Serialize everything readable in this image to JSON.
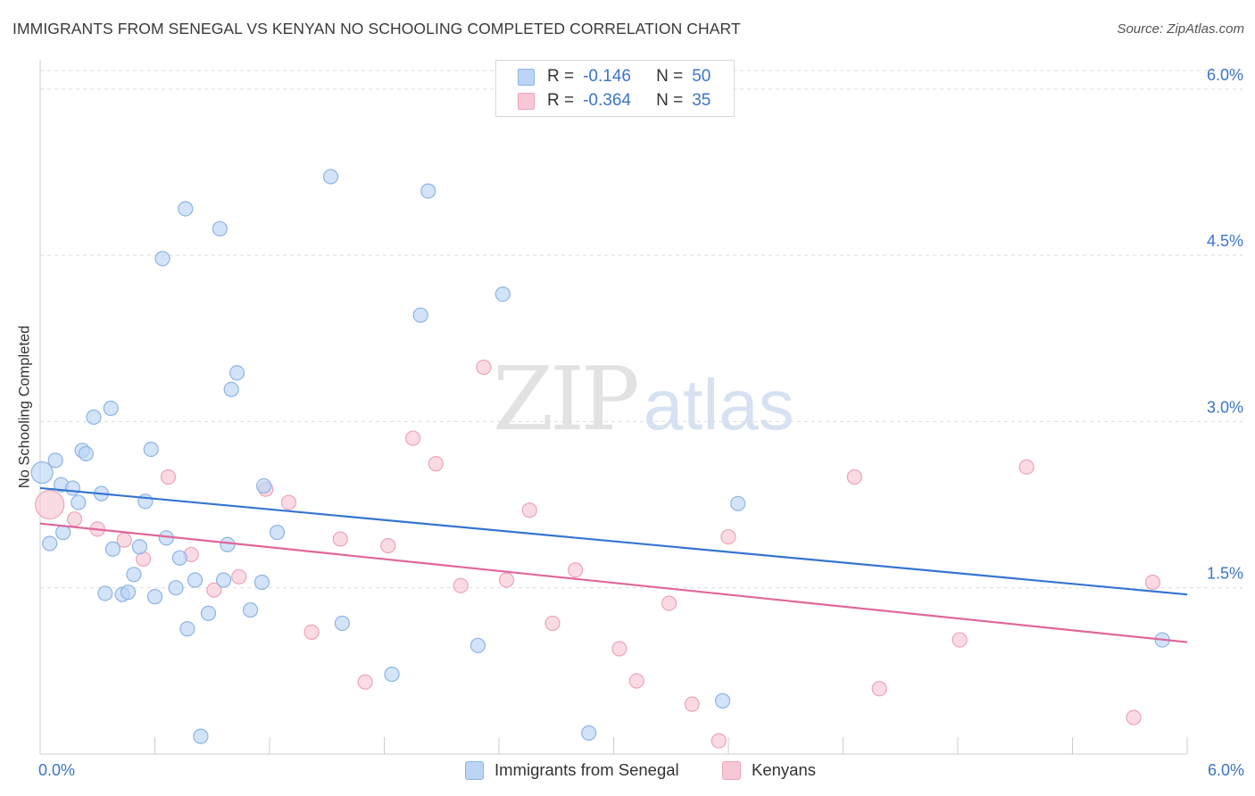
{
  "header": {
    "title": "IMMIGRANTS FROM SENEGAL VS KENYAN NO SCHOOLING COMPLETED CORRELATION CHART",
    "source": "Source: ZipAtlas.com"
  },
  "watermark": {
    "zip": "ZIP",
    "atlas": "atlas"
  },
  "legend_top": [
    {
      "r_label": "R =",
      "r_value": "-0.146",
      "n_label": "N =",
      "n_value": "50"
    },
    {
      "r_label": "R =",
      "r_value": "-0.364",
      "n_label": "N =",
      "n_value": "35"
    }
  ],
  "legend_bottom": [
    {
      "label": "Immigrants from Senegal"
    },
    {
      "label": "Kenyans"
    }
  ],
  "colors": {
    "series_a_fill": "#bcd4f5",
    "series_a_stroke": "#8db4e6",
    "series_a_line": "#3575d0",
    "series_b_fill": "#f8c7d5",
    "series_b_stroke": "#eea3b8",
    "series_b_line": "#e0669a",
    "tick_label": "#3b74c9",
    "grid": "#dcdcdc"
  },
  "chart_data": {
    "type": "scatter",
    "title": "IMMIGRANTS FROM SENEGAL VS KENYAN NO SCHOOLING COMPLETED CORRELATION CHART",
    "xlabel": "",
    "ylabel": "No Schooling Completed",
    "xlim": [
      0,
      6
    ],
    "ylim": [
      0,
      6.2
    ],
    "x_tick_labels": [
      "0.0%",
      "6.0%"
    ],
    "y_ticks": [
      1.5,
      3.0,
      4.5,
      6.0
    ],
    "y_tick_labels": [
      "1.5%",
      "3.0%",
      "4.5%",
      "6.0%"
    ],
    "grid": "horizontal dashed",
    "legend_position": "top-center",
    "series": [
      {
        "name": "Immigrants from Senegal",
        "r": -0.146,
        "n": 50,
        "trend": {
          "x": [
            0,
            6
          ],
          "y": [
            2.4,
            1.44
          ]
        },
        "points": [
          [
            0.01,
            2.54
          ],
          [
            0.08,
            2.65
          ],
          [
            0.05,
            1.9
          ],
          [
            0.11,
            2.43
          ],
          [
            0.17,
            2.4
          ],
          [
            0.2,
            2.27
          ],
          [
            0.22,
            2.74
          ],
          [
            0.24,
            2.71
          ],
          [
            0.28,
            3.04
          ],
          [
            0.32,
            2.35
          ],
          [
            0.37,
            3.12
          ],
          [
            0.38,
            1.85
          ],
          [
            0.12,
            2.0
          ],
          [
            0.34,
            1.45
          ],
          [
            0.43,
            1.44
          ],
          [
            0.46,
            1.46
          ],
          [
            0.49,
            1.62
          ],
          [
            0.52,
            1.87
          ],
          [
            0.55,
            2.28
          ],
          [
            0.58,
            2.75
          ],
          [
            0.6,
            1.42
          ],
          [
            0.66,
            1.95
          ],
          [
            0.71,
            1.5
          ],
          [
            0.73,
            1.77
          ],
          [
            0.77,
            1.13
          ],
          [
            0.81,
            1.57
          ],
          [
            0.84,
            0.16
          ],
          [
            0.88,
            1.27
          ],
          [
            0.96,
            1.57
          ],
          [
            0.98,
            1.89
          ],
          [
            1.0,
            3.29
          ],
          [
            1.03,
            3.44
          ],
          [
            1.1,
            1.3
          ],
          [
            1.16,
            1.55
          ],
          [
            1.17,
            2.42
          ],
          [
            1.24,
            2.0
          ],
          [
            0.64,
            4.47
          ],
          [
            0.76,
            4.92
          ],
          [
            0.94,
            4.74
          ],
          [
            1.52,
            5.21
          ],
          [
            1.58,
            1.18
          ],
          [
            1.84,
            0.72
          ],
          [
            1.99,
            3.96
          ],
          [
            2.03,
            5.08
          ],
          [
            2.29,
            0.98
          ],
          [
            2.42,
            4.15
          ],
          [
            2.87,
            0.19
          ],
          [
            3.57,
            0.48
          ],
          [
            3.65,
            2.26
          ],
          [
            5.87,
            1.03
          ]
        ]
      },
      {
        "name": "Kenyans",
        "r": -0.364,
        "n": 35,
        "trend": {
          "x": [
            0,
            6
          ],
          "y": [
            2.08,
            1.01
          ]
        },
        "points": [
          [
            0.05,
            2.25
          ],
          [
            0.18,
            2.12
          ],
          [
            0.3,
            2.03
          ],
          [
            0.44,
            1.93
          ],
          [
            0.54,
            1.76
          ],
          [
            0.67,
            2.5
          ],
          [
            0.79,
            1.8
          ],
          [
            0.91,
            1.48
          ],
          [
            1.04,
            1.6
          ],
          [
            1.18,
            2.39
          ],
          [
            1.3,
            2.27
          ],
          [
            1.42,
            1.1
          ],
          [
            1.57,
            1.94
          ],
          [
            1.7,
            0.65
          ],
          [
            1.82,
            1.88
          ],
          [
            1.95,
            2.85
          ],
          [
            2.07,
            2.62
          ],
          [
            2.2,
            1.52
          ],
          [
            2.32,
            3.49
          ],
          [
            2.44,
            1.57
          ],
          [
            2.56,
            2.2
          ],
          [
            2.68,
            1.18
          ],
          [
            2.8,
            1.66
          ],
          [
            3.03,
            0.95
          ],
          [
            3.12,
            0.66
          ],
          [
            3.29,
            1.36
          ],
          [
            3.41,
            0.45
          ],
          [
            3.55,
            0.12
          ],
          [
            3.6,
            1.96
          ],
          [
            4.26,
            2.5
          ],
          [
            4.39,
            0.59
          ],
          [
            4.81,
            1.03
          ],
          [
            5.16,
            2.59
          ],
          [
            5.72,
            0.33
          ],
          [
            5.82,
            1.55
          ]
        ]
      }
    ]
  }
}
